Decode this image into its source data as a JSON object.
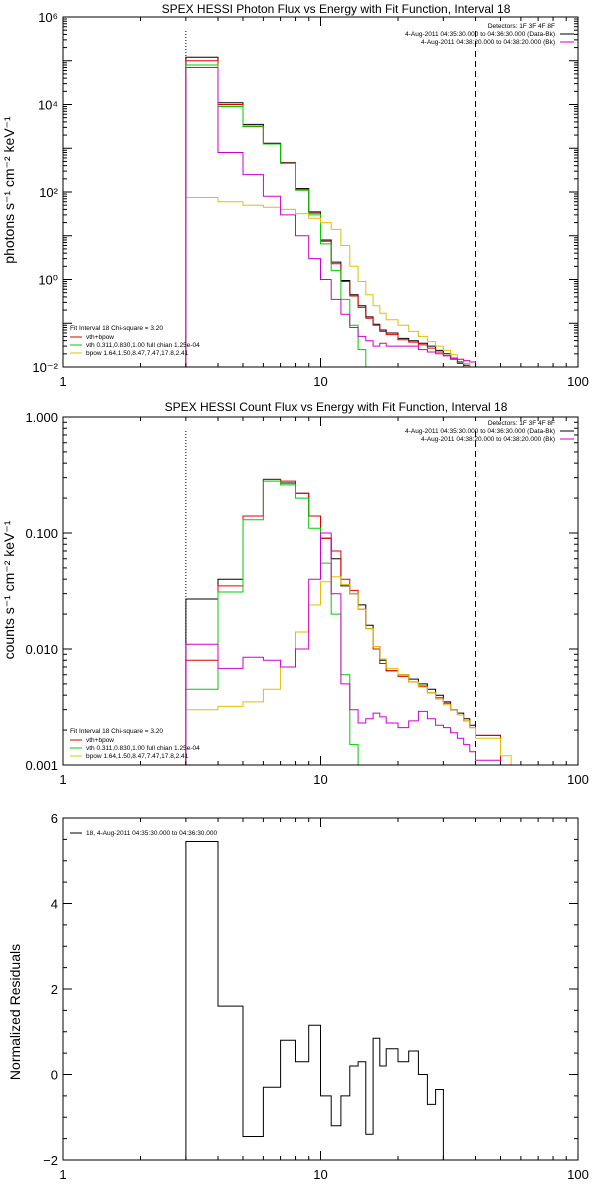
{
  "colors": {
    "data": "#000000",
    "total": "#e00000",
    "vth": "#00cc00",
    "bpow": "#e0c000",
    "bk": "#cc00cc"
  },
  "chart_data": [
    {
      "type": "line",
      "title": "SPEX HESSI Photon Flux vs Energy with Fit Function, Interval 18",
      "ylabel": "photons s⁻¹ cm⁻² keV⁻¹",
      "xlabel": "",
      "xscale": "log",
      "yscale": "log",
      "xlim": [
        1,
        100
      ],
      "ylim": [
        0.01,
        1000000
      ],
      "xticks": [
        {
          "v": 1,
          "label": "1"
        },
        {
          "v": 10,
          "label": "10"
        },
        {
          "v": 100,
          "label": "100"
        }
      ],
      "yticks": [
        {
          "v": 0.01,
          "label": "10⁻²"
        },
        {
          "v": 1,
          "label": "10⁰"
        },
        {
          "v": 100,
          "label": "10²"
        },
        {
          "v": 10000,
          "label": "10⁴"
        },
        {
          "v": 1000000,
          "label": "10⁶"
        }
      ],
      "vlines": [
        {
          "x": 3,
          "style": "dotted"
        },
        {
          "x": 40,
          "style": "dashed"
        }
      ],
      "legend_right": {
        "line1": "Detectors: 1F 3F 4F 8F",
        "line2": "4-Aug-2011 04:35:30.000 to 04:36:30.000 (Data-Bk)",
        "line3": "4-Aug-2011 04:38:20.000 to 04:38:20.000 (Bk)"
      },
      "legend_left": {
        "head": "Fit Interval 18    Chi-square = 3.20",
        "l1": "vth+bpow",
        "l2": "vth 0.311,0.830,1.00  full chian 1.25e-04",
        "l3": "bpow 1.64,1.50,8.47,7.47,17.8,2.41"
      },
      "edges": [
        3,
        4,
        5,
        6,
        7,
        8,
        9,
        10,
        11,
        12,
        13,
        14,
        15,
        16,
        17,
        18,
        20,
        22,
        24,
        26,
        28,
        30,
        32,
        34,
        36,
        38,
        40,
        50
      ],
      "series": [
        {
          "key": "data",
          "values": [
            120000,
            11000,
            3500,
            1300,
            470,
            120,
            35,
            8.0,
            2.5,
            0.95,
            0.45,
            0.25,
            0.14,
            0.095,
            0.07,
            0.06,
            0.045,
            0.04,
            0.035,
            0.03,
            0.024,
            0.02,
            0.016,
            0.013,
            0.011,
            0.0095,
            null
          ]
        },
        {
          "key": "total",
          "values": [
            100000,
            10000,
            3200,
            1250,
            460,
            115,
            33,
            7.5,
            2.3,
            0.9,
            0.42,
            0.23,
            0.13,
            0.09,
            0.065,
            0.055,
            0.042,
            0.037,
            0.032,
            0.027,
            0.022,
            0.018,
            0.015,
            0.012,
            0.01,
            0.0085,
            null
          ]
        },
        {
          "key": "vth",
          "values": [
            80000,
            9000,
            3100,
            1250,
            450,
            110,
            30,
            6.5,
            1.6,
            0.35,
            0.09,
            0.025,
            0.008,
            null,
            null,
            null,
            null,
            null,
            null,
            null,
            null,
            null,
            null,
            null,
            null,
            null,
            null
          ]
        },
        {
          "key": "bpow",
          "values": [
            75,
            60,
            50,
            45,
            40,
            32,
            25,
            20,
            14,
            6.0,
            2.0,
            0.9,
            0.45,
            0.25,
            0.17,
            0.12,
            0.09,
            0.065,
            0.05,
            0.038,
            0.03,
            0.024,
            0.019,
            0.015,
            0.012,
            0.01,
            0.007
          ]
        },
        {
          "key": "bk",
          "values": [
            70000,
            800,
            250,
            80,
            30,
            10,
            3.0,
            1.0,
            0.35,
            0.16,
            0.08,
            0.05,
            0.04,
            0.03,
            0.035,
            0.03,
            0.03,
            0.03,
            0.025,
            0.022,
            0.02,
            0.018,
            0.016,
            0.015,
            0.014,
            0.013,
            null
          ]
        }
      ]
    },
    {
      "type": "line",
      "title": "SPEX HESSI Count Flux vs Energy with Fit Function, Interval 18",
      "ylabel": "counts s⁻¹ cm⁻² keV⁻¹",
      "xlabel": "",
      "xscale": "log",
      "yscale": "log",
      "xlim": [
        1,
        100
      ],
      "ylim": [
        0.001,
        1.0
      ],
      "xticks": [
        {
          "v": 1,
          "label": "1"
        },
        {
          "v": 10,
          "label": "10"
        },
        {
          "v": 100,
          "label": "100"
        }
      ],
      "yticks": [
        {
          "v": 0.001,
          "label": "0.001"
        },
        {
          "v": 0.01,
          "label": "0.010"
        },
        {
          "v": 0.1,
          "label": "0.100"
        },
        {
          "v": 1.0,
          "label": "1.000"
        }
      ],
      "vlines": [
        {
          "x": 3,
          "style": "dotted"
        },
        {
          "x": 40,
          "style": "dashed"
        }
      ],
      "legend_right": {
        "line1": "Detectors: 1F 3F 4F 8F",
        "line2": "4-Aug-2011 04:35:30.000 to 04:36:30.000 (Data-Bk)",
        "line3": "4-Aug-2011 04:38:20.000 to 04:38:20.000 (Bk)"
      },
      "legend_left": {
        "head": "Fit Interval 18    Chi-square = 3.20",
        "l1": "vth+bpow",
        "l2": "vth 0.311,0.830,1.00  full chian 1.25e-04",
        "l3": "bpow 1.64,1.50,8.47,7.47,17.8,2.41"
      },
      "edges": [
        3,
        4,
        5,
        6,
        7,
        8,
        9,
        10,
        11,
        12,
        13,
        14,
        15,
        16,
        17,
        18,
        20,
        22,
        24,
        26,
        28,
        30,
        32,
        34,
        36,
        38,
        40,
        50,
        55,
        60
      ],
      "series": [
        {
          "key": "data",
          "values": [
            0.027,
            0.04,
            0.14,
            0.29,
            0.27,
            0.22,
            0.14,
            0.09,
            0.06,
            0.035,
            0.03,
            0.024,
            0.016,
            0.0105,
            0.008,
            0.0065,
            0.006,
            0.0055,
            0.005,
            0.0045,
            0.004,
            0.0035,
            0.003,
            0.0028,
            0.0025,
            0.0022,
            0.0018,
            null,
            null
          ]
        },
        {
          "key": "total",
          "values": [
            0.008,
            0.035,
            0.14,
            0.29,
            0.28,
            0.22,
            0.14,
            0.09,
            0.07,
            0.04,
            0.032,
            0.022,
            0.015,
            0.01,
            0.0075,
            0.0065,
            0.0058,
            0.0052,
            0.0048,
            0.0042,
            0.0038,
            0.0034,
            0.003,
            0.0027,
            0.0024,
            0.0021,
            0.0018,
            null,
            null
          ]
        },
        {
          "key": "vth",
          "values": [
            0.0045,
            0.031,
            0.13,
            0.28,
            0.26,
            0.2,
            0.11,
            0.055,
            0.02,
            0.006,
            0.0015,
            null,
            null,
            null,
            null,
            null,
            null,
            null,
            null,
            null,
            null,
            null,
            null,
            null,
            null,
            null,
            null,
            null,
            null
          ]
        },
        {
          "key": "bpow",
          "values": [
            0.003,
            0.0032,
            0.0035,
            0.0045,
            0.007,
            0.014,
            0.024,
            0.038,
            0.042,
            0.036,
            0.03,
            0.022,
            0.015,
            0.0105,
            0.0082,
            0.0068,
            0.006,
            0.0052,
            0.0047,
            0.0042,
            0.0037,
            0.0033,
            0.003,
            0.0027,
            0.0024,
            0.0021,
            0.0017,
            0.0012,
            0.001
          ]
        },
        {
          "key": "bk",
          "values": [
            0.011,
            0.0068,
            0.0085,
            0.008,
            0.007,
            0.01,
            0.04,
            0.1,
            0.03,
            0.005,
            0.003,
            0.0023,
            0.0025,
            0.0028,
            0.0026,
            0.0023,
            0.0021,
            0.0024,
            0.0029,
            0.0025,
            0.0022,
            0.0021,
            0.0019,
            0.0017,
            0.0015,
            0.0013,
            0.0011,
            null,
            null
          ]
        }
      ]
    },
    {
      "type": "line",
      "title": "",
      "ylabel": "Normalized Residuals",
      "xlabel": "",
      "xscale": "log",
      "yscale": "linear",
      "xlim": [
        1,
        100
      ],
      "ylim": [
        -2,
        6
      ],
      "xticks": [
        {
          "v": 1,
          "label": "1"
        },
        {
          "v": 10,
          "label": "10"
        },
        {
          "v": 100,
          "label": "100"
        }
      ],
      "yticks": [
        {
          "v": -2,
          "label": "−2"
        },
        {
          "v": 0,
          "label": "0"
        },
        {
          "v": 2,
          "label": "2"
        },
        {
          "v": 4,
          "label": "4"
        },
        {
          "v": 6,
          "label": "6"
        }
      ],
      "legend_label": "18,  4-Aug-2011 04:35:30.000 to 04:36:30.000",
      "edges": [
        3,
        4,
        5,
        6,
        7,
        8,
        9,
        10,
        11,
        12,
        13,
        14,
        15,
        16,
        17,
        18,
        20,
        22,
        24,
        26,
        28,
        30,
        32,
        34,
        36,
        38,
        40
      ],
      "series": [
        {
          "key": "data",
          "values": [
            5.45,
            1.6,
            -1.45,
            -0.3,
            0.8,
            0.3,
            1.15,
            -0.5,
            -1.2,
            -0.5,
            0.2,
            0.3,
            -1.4,
            0.85,
            0.2,
            0.6,
            0.3,
            0.55,
            0.0,
            -0.7,
            -0.35,
            null,
            null,
            null,
            null,
            null
          ]
        }
      ]
    }
  ]
}
